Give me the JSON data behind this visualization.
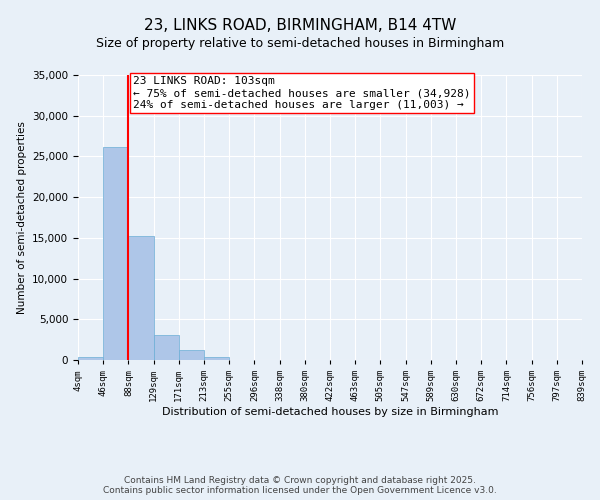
{
  "title": "23, LINKS ROAD, BIRMINGHAM, B14 4TW",
  "subtitle": "Size of property relative to semi-detached houses in Birmingham",
  "xlabel": "Distribution of semi-detached houses by size in Birmingham",
  "ylabel": "Number of semi-detached properties",
  "bin_labels": [
    "4sqm",
    "46sqm",
    "88sqm",
    "129sqm",
    "171sqm",
    "213sqm",
    "255sqm",
    "296sqm",
    "338sqm",
    "380sqm",
    "422sqm",
    "463sqm",
    "505sqm",
    "547sqm",
    "589sqm",
    "630sqm",
    "672sqm",
    "714sqm",
    "756sqm",
    "797sqm",
    "839sqm"
  ],
  "bar_values": [
    400,
    26100,
    15200,
    3100,
    1250,
    350,
    0,
    0,
    0,
    0,
    0,
    0,
    0,
    0,
    0,
    0,
    0,
    0,
    0,
    0
  ],
  "bar_color": "#aec6e8",
  "bar_edge_color": "#6baed6",
  "vline_x": 2.0,
  "vline_color": "red",
  "annotation_line1": "23 LINKS ROAD: 103sqm",
  "annotation_line2": "← 75% of semi-detached houses are smaller (34,928)",
  "annotation_line3": "24% of semi-detached houses are larger (11,003) →",
  "ylim": [
    0,
    35000
  ],
  "yticks": [
    0,
    5000,
    10000,
    15000,
    20000,
    25000,
    30000,
    35000
  ],
  "background_color": "#e8f0f8",
  "plot_bg_color": "#e8f0f8",
  "footer_line1": "Contains HM Land Registry data © Crown copyright and database right 2025.",
  "footer_line2": "Contains public sector information licensed under the Open Government Licence v3.0.",
  "title_fontsize": 11,
  "subtitle_fontsize": 9,
  "annotation_fontsize": 8,
  "footer_fontsize": 6.5
}
